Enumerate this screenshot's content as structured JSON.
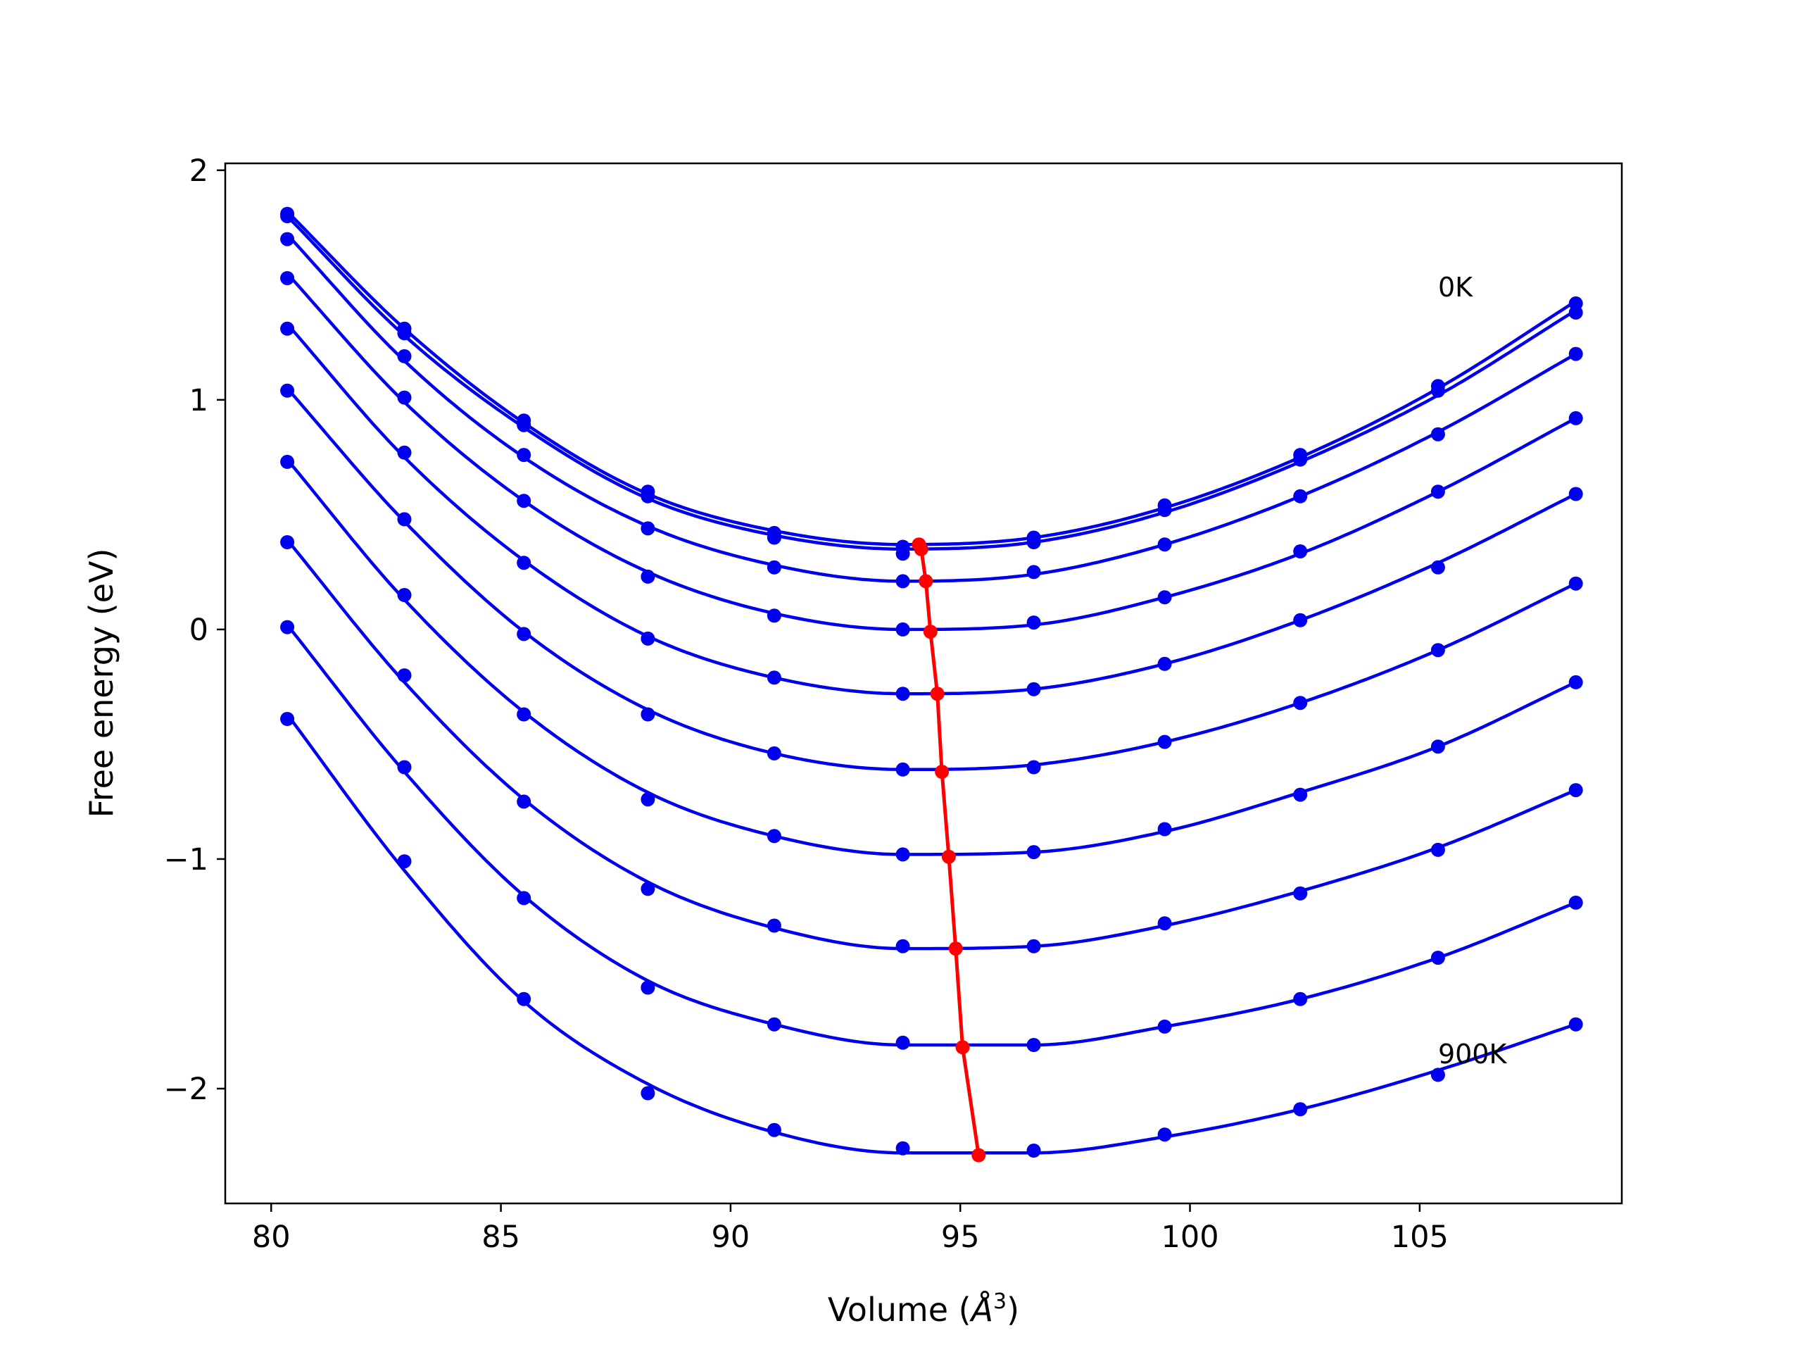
{
  "chart_data": {
    "type": "line",
    "xlabel": "Volume (Å³)",
    "xlabel_base": "Volume (",
    "xlabel_symbol": "Å",
    "xlabel_exp": "3",
    "xlabel_close": ")",
    "ylabel": "Free energy (eV)",
    "xlim": [
      79.0,
      109.4
    ],
    "ylim": [
      -2.5,
      2.03
    ],
    "x_ticks": [
      80,
      85,
      90,
      95,
      100,
      105
    ],
    "x_tick_labels": [
      "80",
      "85",
      "90",
      "95",
      "100",
      "105"
    ],
    "y_ticks": [
      2,
      1,
      0,
      -1,
      -2
    ],
    "y_tick_labels": [
      "2",
      "1",
      "0",
      "−1",
      "−2"
    ],
    "grid": false,
    "annotations": [
      {
        "text": "0K",
        "x": 105.4,
        "y": 1.45
      },
      {
        "text": "900K",
        "x": 105.4,
        "y": -1.89
      }
    ],
    "fit_color": "#0000ee",
    "equilibrium_color": "#ff0000",
    "volumes": [
      80.35,
      82.9,
      85.5,
      88.2,
      90.95,
      93.75,
      96.6,
      99.45,
      102.4,
      105.4,
      108.4
    ],
    "series": [
      {
        "points": [
          1.81,
          1.31,
          0.91,
          0.6,
          0.42,
          0.36,
          0.4,
          0.54,
          0.76,
          1.06,
          1.42
        ],
        "fit": [
          1.82,
          1.31,
          0.9,
          0.59,
          0.43,
          0.37,
          0.4,
          0.53,
          0.75,
          1.05,
          1.43
        ],
        "eq_x": 94.1,
        "eq_y": 0.37
      },
      {
        "points": [
          1.8,
          1.29,
          0.89,
          0.58,
          0.4,
          0.33,
          0.38,
          0.52,
          0.74,
          1.04,
          1.38
        ],
        "fit": [
          1.8,
          1.28,
          0.88,
          0.57,
          0.41,
          0.35,
          0.38,
          0.51,
          0.73,
          1.02,
          1.39
        ],
        "eq_x": 94.15,
        "eq_y": 0.35
      },
      {
        "points": [
          1.7,
          1.19,
          0.76,
          0.44,
          0.27,
          0.21,
          0.25,
          0.37,
          0.58,
          0.85,
          1.2
        ],
        "fit": [
          1.72,
          1.17,
          0.75,
          0.45,
          0.28,
          0.21,
          0.24,
          0.37,
          0.58,
          0.86,
          1.2
        ],
        "eq_x": 94.25,
        "eq_y": 0.21
      },
      {
        "points": [
          1.53,
          1.01,
          0.56,
          0.23,
          0.06,
          0.0,
          0.03,
          0.14,
          0.34,
          0.6,
          0.92
        ],
        "fit": [
          1.55,
          0.99,
          0.56,
          0.25,
          0.07,
          0.0,
          0.02,
          0.14,
          0.33,
          0.6,
          0.92
        ],
        "eq_x": 94.35,
        "eq_y": -0.01
      },
      {
        "points": [
          1.31,
          0.77,
          0.29,
          -0.04,
          -0.21,
          -0.28,
          -0.26,
          -0.15,
          0.04,
          0.27,
          0.59
        ],
        "fit": [
          1.33,
          0.75,
          0.3,
          -0.03,
          -0.21,
          -0.28,
          -0.26,
          -0.15,
          0.04,
          0.29,
          0.59
        ],
        "eq_x": 94.5,
        "eq_y": -0.28
      },
      {
        "points": [
          1.04,
          0.48,
          -0.02,
          -0.37,
          -0.54,
          -0.61,
          -0.6,
          -0.49,
          -0.32,
          -0.09,
          0.2
        ],
        "fit": [
          1.05,
          0.47,
          -0.01,
          -0.35,
          -0.54,
          -0.61,
          -0.59,
          -0.49,
          -0.32,
          -0.09,
          0.2
        ],
        "eq_x": 94.6,
        "eq_y": -0.62
      },
      {
        "points": [
          0.73,
          0.15,
          -0.37,
          -0.74,
          -0.9,
          -0.98,
          -0.97,
          -0.87,
          -0.72,
          -0.51,
          -0.23
        ],
        "fit": [
          0.74,
          0.13,
          -0.36,
          -0.71,
          -0.9,
          -0.98,
          -0.97,
          -0.88,
          -0.71,
          -0.51,
          -0.23
        ],
        "eq_x": 94.75,
        "eq_y": -0.99
      },
      {
        "points": [
          0.38,
          -0.2,
          -0.75,
          -1.13,
          -1.29,
          -1.38,
          -1.38,
          -1.28,
          -1.15,
          -0.96,
          -0.7
        ],
        "fit": [
          0.39,
          -0.23,
          -0.74,
          -1.1,
          -1.3,
          -1.39,
          -1.38,
          -1.29,
          -1.14,
          -0.95,
          -0.7
        ],
        "eq_x": 94.9,
        "eq_y": -1.39
      },
      {
        "points": [
          0.01,
          -0.6,
          -1.17,
          -1.56,
          -1.72,
          -1.8,
          -1.81,
          -1.73,
          -1.61,
          -1.43,
          -1.19
        ],
        "fit": [
          0.02,
          -0.62,
          -1.16,
          -1.53,
          -1.72,
          -1.81,
          -1.81,
          -1.73,
          -1.61,
          -1.43,
          -1.19
        ],
        "eq_x": 95.05,
        "eq_y": -1.82
      },
      {
        "points": [
          -0.39,
          -1.01,
          -1.61,
          -2.02,
          -2.18,
          -2.26,
          -2.27,
          -2.2,
          -2.09,
          -1.94,
          -1.72
        ],
        "fit": [
          -0.37,
          -1.05,
          -1.62,
          -1.98,
          -2.19,
          -2.28,
          -2.28,
          -2.21,
          -2.09,
          -1.92,
          -1.72
        ],
        "eq_x": 95.4,
        "eq_y": -2.29
      }
    ]
  }
}
